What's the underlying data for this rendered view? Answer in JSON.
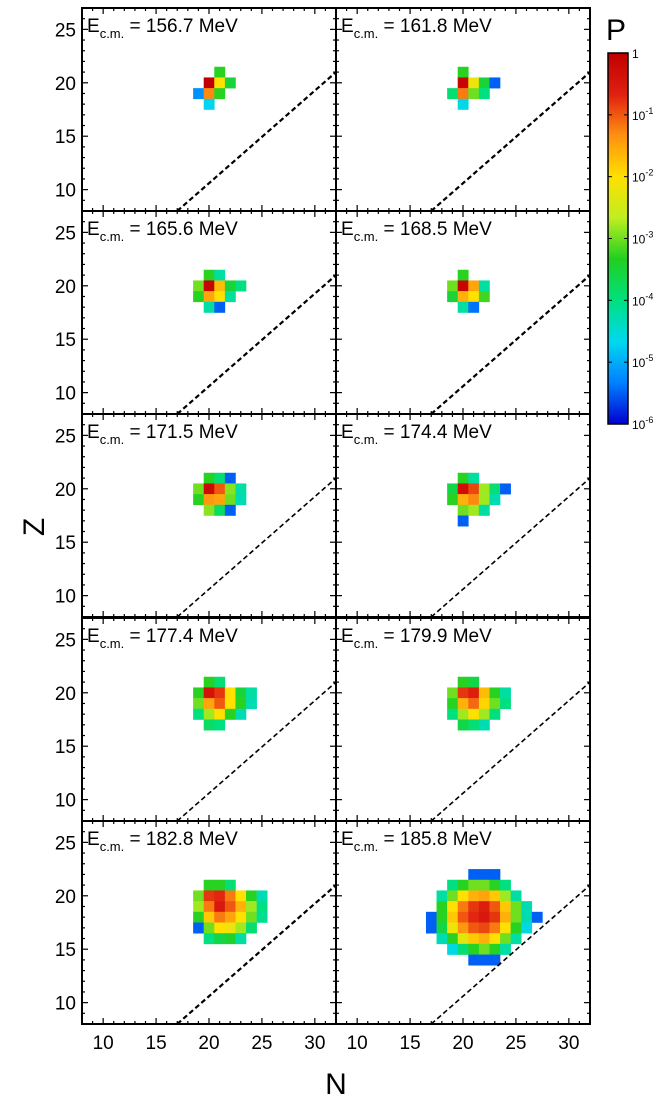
{
  "chart_data": {
    "type": "heatmap",
    "layout": "5 rows x 2 columns, shared axes",
    "xlabel": "N",
    "ylabel": "Z",
    "xlim": [
      8,
      32
    ],
    "ylim": [
      8,
      27
    ],
    "x_ticks": [
      10,
      15,
      20,
      25,
      30
    ],
    "y_ticks": [
      10,
      15,
      20,
      25
    ],
    "color_scale": "log",
    "colorbar": {
      "label": "P",
      "range": [
        1e-06,
        1
      ],
      "ticks": [
        {
          "value": 1,
          "label": "1"
        },
        {
          "value": 0.1,
          "label": "10",
          "sup": "-1"
        },
        {
          "value": 0.01,
          "label": "10",
          "sup": "-2"
        },
        {
          "value": 0.001,
          "label": "10",
          "sup": "-3"
        },
        {
          "value": 0.0001,
          "label": "10",
          "sup": "-4"
        },
        {
          "value": 1e-05,
          "label": "10",
          "sup": "-5"
        },
        {
          "value": 1e-06,
          "label": "10",
          "sup": "-6"
        }
      ],
      "colormap": [
        "#0000d0",
        "#0080ff",
        "#00d8f0",
        "#00e080",
        "#20d020",
        "#c0ee20",
        "#ffe000",
        "#ff9010",
        "#e02010",
        "#c00000"
      ]
    },
    "reference_line": {
      "style": "dashed",
      "points": [
        [
          17,
          8
        ],
        [
          32,
          21
        ]
      ]
    },
    "label_prefix": "E",
    "label_subscript": "c.m.",
    "panels": [
      {
        "energy": "156.7 MeV",
        "cells": [
          [
            21,
            21,
            -3.3
          ],
          [
            20,
            20,
            0
          ],
          [
            21,
            20,
            -2.0
          ],
          [
            22,
            20,
            -3.5
          ],
          [
            19,
            19,
            -5.2
          ],
          [
            20,
            19,
            -1.3
          ],
          [
            21,
            19,
            -3.3
          ],
          [
            20,
            18,
            -4.7
          ]
        ]
      },
      {
        "energy": "161.8 MeV",
        "cells": [
          [
            20,
            21,
            -3.3
          ],
          [
            20,
            20,
            -0.1
          ],
          [
            21,
            20,
            -2.2
          ],
          [
            22,
            20,
            -3.5
          ],
          [
            23,
            20,
            -5.5
          ],
          [
            19,
            19,
            -3.9
          ],
          [
            20,
            19,
            -1.2
          ],
          [
            21,
            19,
            -3.0
          ],
          [
            22,
            19,
            -4.0
          ],
          [
            20,
            18,
            -4.6
          ]
        ]
      },
      {
        "energy": "165.6 MeV",
        "cells": [
          [
            20,
            21,
            -3.3
          ],
          [
            21,
            21,
            -4.2
          ],
          [
            19,
            20,
            -3.0
          ],
          [
            20,
            20,
            -0.1
          ],
          [
            21,
            20,
            -1.7
          ],
          [
            22,
            20,
            -3.5
          ],
          [
            23,
            20,
            -4.0
          ],
          [
            19,
            19,
            -3.3
          ],
          [
            20,
            19,
            -1.5
          ],
          [
            21,
            19,
            -2.0
          ],
          [
            22,
            19,
            -4.2
          ],
          [
            20,
            18,
            -4.2
          ],
          [
            21,
            18,
            -5.5
          ]
        ]
      },
      {
        "energy": "168.5 MeV",
        "cells": [
          [
            20,
            21,
            -3.3
          ],
          [
            19,
            20,
            -3.0
          ],
          [
            20,
            20,
            -0.1
          ],
          [
            21,
            20,
            -1.5
          ],
          [
            22,
            20,
            -4.2
          ],
          [
            19,
            19,
            -3.5
          ],
          [
            20,
            19,
            -1.6
          ],
          [
            21,
            19,
            -2.0
          ],
          [
            22,
            19,
            -3.2
          ],
          [
            20,
            18,
            -4.2
          ],
          [
            21,
            18,
            -5.4
          ]
        ]
      },
      {
        "energy": "171.5 MeV",
        "cells": [
          [
            20,
            21,
            -3.3
          ],
          [
            21,
            21,
            -3.9
          ],
          [
            22,
            21,
            -5.5
          ],
          [
            19,
            20,
            -3.0
          ],
          [
            20,
            20,
            -0.2
          ],
          [
            21,
            20,
            -1.0
          ],
          [
            22,
            20,
            -2.9
          ],
          [
            23,
            20,
            -4.2
          ],
          [
            19,
            19,
            -3.3
          ],
          [
            20,
            19,
            -1.4
          ],
          [
            21,
            19,
            -1.5
          ],
          [
            22,
            19,
            -3.0
          ],
          [
            23,
            19,
            -4.3
          ],
          [
            20,
            18,
            -2.9
          ],
          [
            21,
            18,
            -3.8
          ],
          [
            22,
            18,
            -5.5
          ]
        ]
      },
      {
        "energy": "174.4 MeV",
        "cells": [
          [
            20,
            21,
            -3.3
          ],
          [
            21,
            21,
            -4.2
          ],
          [
            19,
            20,
            -3.6
          ],
          [
            20,
            20,
            -0.3
          ],
          [
            21,
            20,
            -0.9
          ],
          [
            22,
            20,
            -2.8
          ],
          [
            23,
            20,
            -3.9
          ],
          [
            24,
            20,
            -5.5
          ],
          [
            19,
            19,
            -3.3
          ],
          [
            20,
            19,
            -1.6
          ],
          [
            21,
            19,
            -1.3
          ],
          [
            22,
            19,
            -2.8
          ],
          [
            23,
            19,
            -4.3
          ],
          [
            20,
            18,
            -3.0
          ],
          [
            21,
            18,
            -2.8
          ],
          [
            22,
            18,
            -4.2
          ],
          [
            20,
            17,
            -5.5
          ]
        ]
      },
      {
        "energy": "177.4 MeV",
        "cells": [
          [
            20,
            21,
            -3.3
          ],
          [
            21,
            21,
            -3.9
          ],
          [
            19,
            20,
            -3.3
          ],
          [
            20,
            20,
            -0.4
          ],
          [
            21,
            20,
            -0.8
          ],
          [
            22,
            20,
            -2.0
          ],
          [
            23,
            20,
            -3.5
          ],
          [
            24,
            20,
            -4.2
          ],
          [
            19,
            19,
            -3.0
          ],
          [
            20,
            19,
            -1.5
          ],
          [
            21,
            19,
            -1.0
          ],
          [
            22,
            19,
            -2.0
          ],
          [
            23,
            19,
            -3.3
          ],
          [
            24,
            19,
            -4.3
          ],
          [
            19,
            18,
            -4.0
          ],
          [
            20,
            18,
            -2.8
          ],
          [
            21,
            18,
            -2.0
          ],
          [
            22,
            18,
            -3.3
          ],
          [
            23,
            18,
            -4.3
          ],
          [
            20,
            17,
            -3.8
          ],
          [
            21,
            17,
            -4.0
          ]
        ]
      },
      {
        "energy": "179.9 MeV",
        "cells": [
          [
            20,
            21,
            -3.3
          ],
          [
            21,
            21,
            -3.6
          ],
          [
            19,
            20,
            -3.0
          ],
          [
            20,
            20,
            -0.8
          ],
          [
            21,
            20,
            -0.6
          ],
          [
            22,
            20,
            -1.7
          ],
          [
            23,
            20,
            -3.3
          ],
          [
            24,
            20,
            -4.2
          ],
          [
            19,
            19,
            -3.3
          ],
          [
            20,
            19,
            -1.6
          ],
          [
            21,
            19,
            -1.1
          ],
          [
            22,
            19,
            -1.9
          ],
          [
            23,
            19,
            -3.0
          ],
          [
            24,
            19,
            -4.0
          ],
          [
            19,
            18,
            -4.0
          ],
          [
            20,
            18,
            -2.8
          ],
          [
            21,
            18,
            -2.0
          ],
          [
            22,
            18,
            -2.8
          ],
          [
            23,
            18,
            -4.0
          ],
          [
            20,
            17,
            -3.6
          ],
          [
            21,
            17,
            -3.9
          ],
          [
            22,
            17,
            -4.3
          ]
        ]
      },
      {
        "energy": "182.8 MeV",
        "cells": [
          [
            20,
            21,
            -3.3
          ],
          [
            21,
            21,
            -3.3
          ],
          [
            22,
            21,
            -3.9
          ],
          [
            19,
            20,
            -3.0
          ],
          [
            20,
            20,
            -0.8
          ],
          [
            21,
            20,
            -0.7
          ],
          [
            22,
            20,
            -1.2
          ],
          [
            23,
            20,
            -2.0
          ],
          [
            24,
            20,
            -3.3
          ],
          [
            25,
            20,
            -4.3
          ],
          [
            19,
            19,
            -2.8
          ],
          [
            20,
            19,
            -1.2
          ],
          [
            21,
            19,
            -0.5
          ],
          [
            22,
            19,
            -1.0
          ],
          [
            23,
            19,
            -1.6
          ],
          [
            24,
            19,
            -2.8
          ],
          [
            25,
            19,
            -4.0
          ],
          [
            19,
            18,
            -3.3
          ],
          [
            20,
            18,
            -1.8
          ],
          [
            21,
            18,
            -1.2
          ],
          [
            22,
            18,
            -1.5
          ],
          [
            23,
            18,
            -2.0
          ],
          [
            24,
            18,
            -3.0
          ],
          [
            25,
            18,
            -4.1
          ],
          [
            19,
            17,
            -5.5
          ],
          [
            20,
            17,
            -3.0
          ],
          [
            21,
            17,
            -2.0
          ],
          [
            22,
            17,
            -2.2
          ],
          [
            23,
            17,
            -2.8
          ],
          [
            24,
            17,
            -3.9
          ],
          [
            20,
            16,
            -4.0
          ],
          [
            21,
            16,
            -3.6
          ],
          [
            22,
            16,
            -3.4
          ],
          [
            23,
            16,
            -4.2
          ]
        ]
      },
      {
        "energy": "185.8 MeV",
        "cells": [
          [
            21,
            22,
            -5.5
          ],
          [
            22,
            22,
            -5.5
          ],
          [
            23,
            22,
            -5.5
          ],
          [
            19,
            21,
            -4.0
          ],
          [
            20,
            21,
            -3.3
          ],
          [
            21,
            21,
            -3.0
          ],
          [
            22,
            21,
            -3.0
          ],
          [
            23,
            21,
            -3.3
          ],
          [
            24,
            21,
            -4.0
          ],
          [
            18,
            20,
            -4.2
          ],
          [
            19,
            20,
            -3.0
          ],
          [
            20,
            20,
            -2.0
          ],
          [
            21,
            20,
            -1.6
          ],
          [
            22,
            20,
            -1.5
          ],
          [
            23,
            20,
            -1.8
          ],
          [
            24,
            20,
            -2.8
          ],
          [
            25,
            20,
            -4.2
          ],
          [
            18,
            19,
            -3.3
          ],
          [
            19,
            19,
            -2.0
          ],
          [
            20,
            19,
            -1.2
          ],
          [
            21,
            19,
            -0.8
          ],
          [
            22,
            19,
            -0.6
          ],
          [
            23,
            19,
            -1.0
          ],
          [
            24,
            19,
            -1.8
          ],
          [
            25,
            19,
            -3.0
          ],
          [
            26,
            19,
            -4.3
          ],
          [
            17,
            18,
            -5.5
          ],
          [
            18,
            18,
            -3.3
          ],
          [
            19,
            18,
            -1.8
          ],
          [
            20,
            18,
            -1.0
          ],
          [
            21,
            18,
            -0.7
          ],
          [
            22,
            18,
            -0.5
          ],
          [
            23,
            18,
            -0.8
          ],
          [
            24,
            18,
            -1.6
          ],
          [
            25,
            18,
            -3.0
          ],
          [
            26,
            18,
            -4.3
          ],
          [
            27,
            18,
            -5.5
          ],
          [
            17,
            17,
            -5.5
          ],
          [
            18,
            17,
            -3.6
          ],
          [
            19,
            17,
            -2.2
          ],
          [
            20,
            17,
            -1.4
          ],
          [
            21,
            17,
            -1.0
          ],
          [
            22,
            17,
            -0.9
          ],
          [
            23,
            17,
            -1.2
          ],
          [
            24,
            17,
            -2.0
          ],
          [
            25,
            17,
            -3.3
          ],
          [
            26,
            17,
            -4.6
          ],
          [
            18,
            16,
            -4.3
          ],
          [
            19,
            16,
            -3.3
          ],
          [
            20,
            16,
            -2.3
          ],
          [
            21,
            16,
            -1.8
          ],
          [
            22,
            16,
            -1.6
          ],
          [
            23,
            16,
            -2.0
          ],
          [
            24,
            16,
            -3.0
          ],
          [
            25,
            16,
            -4.2
          ],
          [
            19,
            15,
            -4.6
          ],
          [
            20,
            15,
            -3.9
          ],
          [
            21,
            15,
            -3.3
          ],
          [
            22,
            15,
            -3.0
          ],
          [
            23,
            15,
            -3.3
          ],
          [
            24,
            15,
            -4.2
          ],
          [
            21,
            14,
            -5.5
          ],
          [
            22,
            14,
            -5.5
          ],
          [
            23,
            14,
            -5.5
          ]
        ]
      }
    ]
  }
}
